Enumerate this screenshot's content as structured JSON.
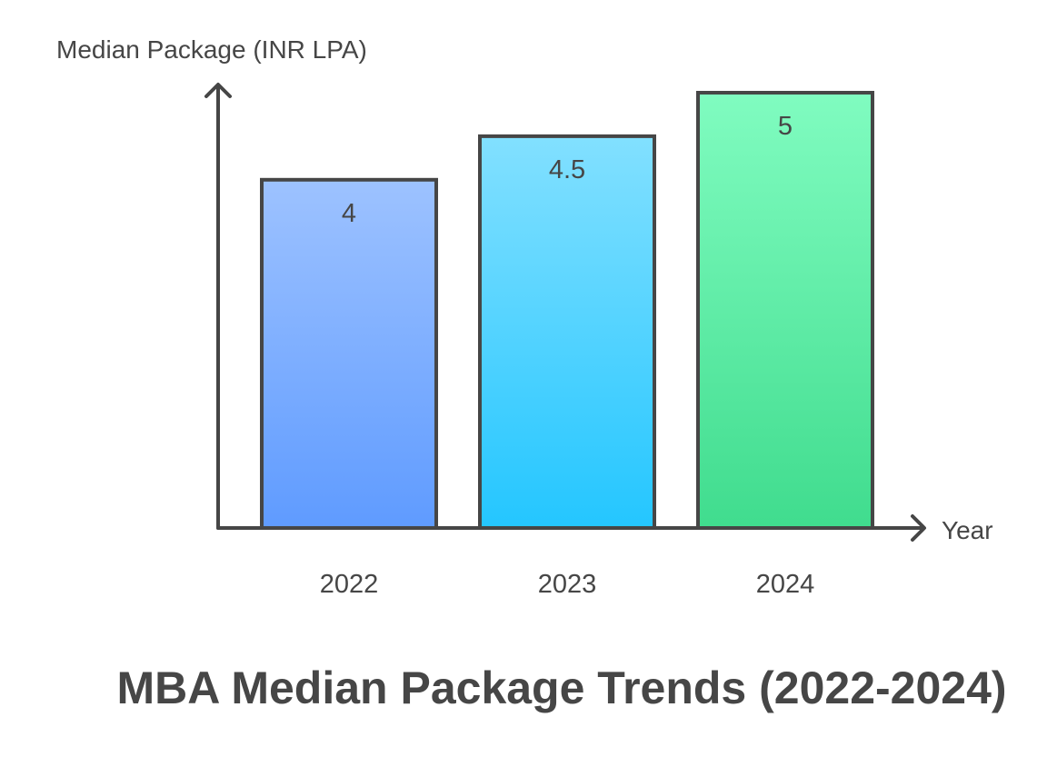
{
  "chart_data": {
    "type": "bar",
    "title": "MBA Median Package Trends (2022-2024)",
    "xlabel": "Year",
    "ylabel": "Median Package (INR LPA)",
    "categories": [
      "2022",
      "2023",
      "2024"
    ],
    "values": [
      4,
      4.5,
      5
    ],
    "value_labels": [
      "4",
      "4.5",
      "5"
    ],
    "ylim": [
      0,
      5
    ],
    "grid": false,
    "legend": "none",
    "bar_gradients": [
      {
        "top": "#9dc2ff",
        "bottom": "#5f9bff"
      },
      {
        "top": "#82e0ff",
        "bottom": "#24c6ff"
      },
      {
        "top": "#80fcc0",
        "bottom": "#40dc8e"
      }
    ],
    "outline_color": "#464646"
  }
}
